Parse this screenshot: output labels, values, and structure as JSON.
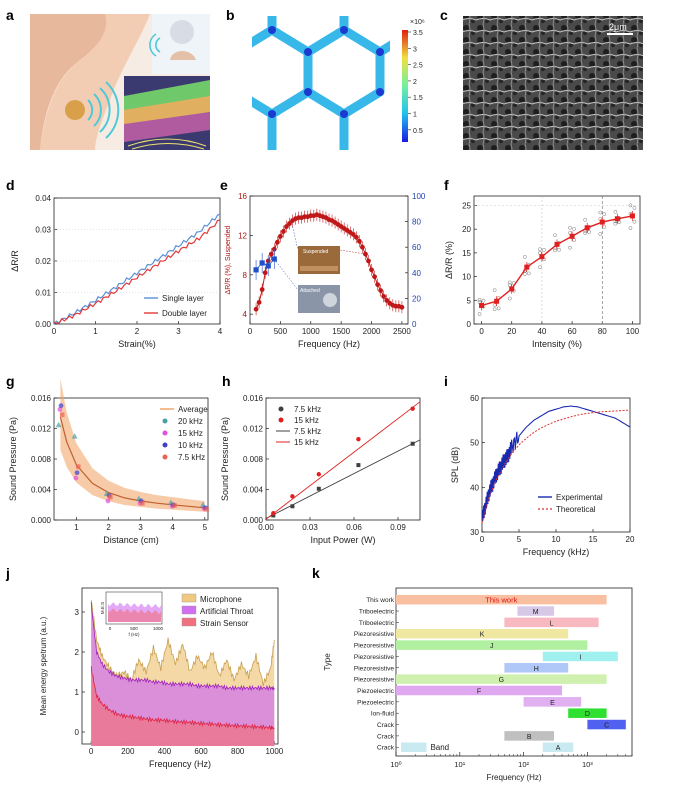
{
  "panel_labels": [
    "a",
    "b",
    "c",
    "d",
    "e",
    "f",
    "g",
    "h",
    "i",
    "j",
    "k"
  ],
  "colors": {
    "blue": "#3a64c8",
    "red": "#e03a3a",
    "darkred": "#c01818",
    "orange": "#f0b070",
    "purple": "#c050e0",
    "pink": "#f07080",
    "navy": "#1a2ab0",
    "gray": "#505050"
  },
  "panel_b": {
    "scale_exponent": "×10⁶",
    "scale_ticks": [
      "3.5",
      "3",
      "2.5",
      "2",
      "1.5",
      "1",
      "0.5"
    ]
  },
  "panel_c": {
    "scale_bar": "2μm"
  },
  "panel_a": {
    "icons": [
      "neck-illustration-icon",
      "sound-wave-icon",
      "layered-sensor-icon"
    ]
  },
  "chart_data": [
    {
      "panel": "d",
      "type": "line",
      "xlabel": "Strain(%)",
      "ylabel": "ΔR/R",
      "xlim": [
        0,
        4
      ],
      "ylim": [
        0,
        0.04
      ],
      "xticks": [
        "0",
        "1",
        "2",
        "3",
        "4"
      ],
      "yticks": [
        "0.00",
        "0.01",
        "0.02",
        "0.03",
        "0.04"
      ],
      "legend": "bottom-right",
      "series": [
        {
          "name": "Single layer",
          "color": "#5b8fd6",
          "x": [
            0,
            0.5,
            1,
            1.5,
            2,
            2.5,
            3,
            3.5,
            4
          ],
          "y": [
            0,
            0.0035,
            0.0075,
            0.0118,
            0.0162,
            0.0205,
            0.0248,
            0.0293,
            0.035
          ]
        },
        {
          "name": "Double layer",
          "color": "#e03a3a",
          "x": [
            0,
            0.5,
            1,
            1.5,
            2,
            2.5,
            3,
            3.5,
            4
          ],
          "y": [
            0,
            0.0028,
            0.0065,
            0.0105,
            0.0148,
            0.019,
            0.0232,
            0.0272,
            0.033
          ]
        }
      ]
    },
    {
      "panel": "e",
      "type": "scatter",
      "xlabel": "Frequency (Hz)",
      "ylabel": "ΔR/R (%), Suspended",
      "ylabel_right": "",
      "xlim": [
        0,
        2600
      ],
      "ylim": [
        3,
        16
      ],
      "ylim_right": [
        0,
        100
      ],
      "xticks": [
        "0",
        "500",
        "1000",
        "1500",
        "2000",
        "2500"
      ],
      "yticks": [
        "4",
        "8",
        "12",
        "16"
      ],
      "yticks_right": [
        "0",
        "20",
        "40",
        "60",
        "80",
        "100"
      ],
      "inset_labels": [
        "Suspended",
        "Attached"
      ],
      "series": [
        {
          "name": "Suspended",
          "color": "#c01818",
          "x": [
            100,
            150,
            200,
            250,
            300,
            350,
            400,
            450,
            500,
            550,
            600,
            650,
            700,
            750,
            800,
            850,
            900,
            950,
            1000,
            1050,
            1100,
            1150,
            1200,
            1250,
            1300,
            1350,
            1400,
            1450,
            1500,
            1550,
            1600,
            1650,
            1700,
            1750,
            1800,
            1850,
            1900,
            1950,
            2000,
            2050,
            2100,
            2150,
            2200,
            2250,
            2300,
            2350,
            2400,
            2450,
            2500
          ],
          "y": [
            4.5,
            5.2,
            6.5,
            8.2,
            9.4,
            10.1,
            10.6,
            11.3,
            11.9,
            12.4,
            12.9,
            13.2,
            13.5,
            13.7,
            13.8,
            13.8,
            13.9,
            13.9,
            14.0,
            14.0,
            14.1,
            14.0,
            13.9,
            13.8,
            13.6,
            13.5,
            13.3,
            13.1,
            12.9,
            12.7,
            12.5,
            12.3,
            12.1,
            11.8,
            11.4,
            10.8,
            10.1,
            9.4,
            8.5,
            7.8,
            7.0,
            6.4,
            5.8,
            5.4,
            5.1,
            4.9,
            4.8,
            4.8,
            4.7
          ]
        },
        {
          "name": "Attached",
          "color": "#2050c8",
          "x": [
            100,
            200,
            300,
            400
          ],
          "y": [
            8.5,
            9.2,
            8.9,
            9.6
          ]
        }
      ]
    },
    {
      "panel": "f",
      "type": "line",
      "xlabel": "Intensity (%)",
      "ylabel": "ΔR/R (%)",
      "xlim": [
        -5,
        105
      ],
      "ylim": [
        0,
        27
      ],
      "xticks": [
        "0",
        "20",
        "40",
        "60",
        "80",
        "100"
      ],
      "yticks": [
        "0",
        "5",
        "10",
        "15",
        "20",
        "25"
      ],
      "series": [
        {
          "name": "",
          "color": "#e02020",
          "x": [
            0,
            10,
            20,
            30,
            40,
            50,
            60,
            70,
            80,
            90,
            100
          ],
          "y": [
            3.9,
            4.8,
            7.4,
            12.0,
            14.2,
            16.8,
            18.5,
            20.3,
            21.5,
            22.2,
            22.8
          ]
        }
      ]
    },
    {
      "panel": "g",
      "type": "scatter",
      "xlabel": "Distance (cm)",
      "ylabel": "Sound Pressure (Pa)",
      "xlim": [
        0.3,
        5.1
      ],
      "ylim": [
        0,
        0.016
      ],
      "xticks": [
        "1",
        "2",
        "3",
        "4",
        "5"
      ],
      "yticks": [
        "0.000",
        "0.004",
        "0.008",
        "0.012",
        "0.016"
      ],
      "legend": "top-right",
      "series": [
        {
          "name": "Average",
          "color": "#c06030",
          "x": [
            0.5,
            0.7,
            1,
            1.5,
            2,
            2.5,
            3,
            3.5,
            4,
            4.5,
            5
          ],
          "y": [
            0.0135,
            0.0102,
            0.0072,
            0.0048,
            0.0036,
            0.0029,
            0.0025,
            0.0022,
            0.002,
            0.0018,
            0.0016
          ]
        },
        {
          "name": "20 kHz",
          "color": "#4aa0a0",
          "x": [
            0.5,
            1,
            2,
            3,
            4,
            5
          ],
          "y": [
            0.0125,
            0.011,
            0.0035,
            0.0028,
            0.0023,
            0.002
          ]
        },
        {
          "name": "15 kHz",
          "color": "#e050e0",
          "x": [
            0.5,
            1,
            2,
            3,
            4,
            5
          ],
          "y": [
            0.0145,
            0.0055,
            0.0025,
            0.0022,
            0.0018,
            0.0015
          ]
        },
        {
          "name": "10 kHz",
          "color": "#4040d0",
          "x": [
            0.5,
            1,
            2,
            3,
            4,
            5
          ],
          "y": [
            0.015,
            0.0062,
            0.0032,
            0.0025,
            0.002,
            0.0016
          ]
        },
        {
          "name": "7.5 kHz",
          "color": "#f06050",
          "x": [
            0.5,
            1,
            2,
            3,
            4,
            5
          ],
          "y": [
            0.0138,
            0.007,
            0.003,
            0.0022,
            0.0019,
            0.0014
          ]
        }
      ]
    },
    {
      "panel": "h",
      "type": "scatter",
      "xlabel": "Input Power (W)",
      "ylabel": "Sound Pressure (Pa)",
      "xlim": [
        0,
        0.105
      ],
      "ylim": [
        0,
        0.016
      ],
      "xticks": [
        "0.00",
        "0.03",
        "0.06",
        "0.09"
      ],
      "yticks": [
        "0.000",
        "0.004",
        "0.008",
        "0.012",
        "0.016"
      ],
      "legend": "top-left",
      "series": [
        {
          "name": "7.5 kHz",
          "color": "#404040",
          "x": [
            0.005,
            0.018,
            0.036,
            0.063,
            0.1
          ],
          "y": [
            0.0006,
            0.0018,
            0.0041,
            0.0072,
            0.01
          ]
        },
        {
          "name": "15 kHz",
          "color": "#e02020",
          "x": [
            0.005,
            0.018,
            0.036,
            0.063,
            0.1
          ],
          "y": [
            0.0009,
            0.0031,
            0.006,
            0.0106,
            0.0146
          ]
        }
      ],
      "fits": [
        {
          "name": "7.5 kHz",
          "color": "#404040",
          "x": [
            0,
            0.105
          ],
          "y": [
            0.0002,
            0.0105
          ]
        },
        {
          "name": "15 kHz",
          "color": "#e02020",
          "x": [
            0,
            0.105
          ],
          "y": [
            0.0001,
            0.0155
          ]
        }
      ]
    },
    {
      "panel": "i",
      "type": "line",
      "xlabel": "Frequency (kHz)",
      "ylabel": "SPL (dB)",
      "xlim": [
        0,
        20
      ],
      "ylim": [
        30,
        60
      ],
      "xticks": [
        "0",
        "5",
        "10",
        "15",
        "20"
      ],
      "yticks": [
        "30",
        "40",
        "50",
        "60"
      ],
      "legend": "bottom-right",
      "series": [
        {
          "name": "Experimental",
          "color": "#1a2ab0",
          "x": [
            0,
            0.5,
            1,
            1.5,
            2,
            2.5,
            3,
            3.5,
            4,
            5,
            6,
            7,
            8,
            9,
            10,
            11,
            12,
            13,
            14,
            15,
            16,
            17,
            18,
            19,
            20
          ],
          "y": [
            33,
            36,
            39,
            41,
            43,
            44.5,
            46,
            47,
            49,
            51.5,
            53.5,
            55,
            56,
            57,
            57.5,
            58,
            58.2,
            58,
            57.5,
            57,
            56.5,
            56,
            55.5,
            54.5,
            53.5
          ]
        },
        {
          "name": "Theoretical",
          "color": "#e03030",
          "x": [
            0,
            1,
            2,
            3,
            4,
            5,
            6,
            7,
            8,
            9,
            10,
            11,
            12,
            13,
            14,
            15,
            16,
            17,
            18,
            19,
            20
          ],
          "y": [
            32,
            38,
            42,
            45,
            47.5,
            49.5,
            51,
            52.3,
            53.3,
            54.1,
            54.8,
            55.3,
            55.8,
            56.2,
            56.5,
            56.7,
            56.9,
            57,
            57.1,
            57.2,
            57.3
          ]
        }
      ]
    },
    {
      "panel": "j",
      "type": "area",
      "xlabel": "Frequency (Hz)",
      "ylabel": "Mean energy spetrum (a.u.)",
      "xlim": [
        -50,
        1020
      ],
      "ylim": [
        -0.3,
        3.6
      ],
      "xticks": [
        "0",
        "200",
        "400",
        "600",
        "800",
        "1000"
      ],
      "yticks": [
        "0",
        "1",
        "2",
        "3"
      ],
      "legend": "top-right",
      "inset_xticks": [
        "0",
        "500",
        "1000"
      ],
      "inset_xlabel": "f (Hz)",
      "inset_ylabel": "M.E.S",
      "series": [
        {
          "name": "Microphone",
          "color": "#f0c880",
          "x": [
            0,
            30,
            60,
            100,
            140,
            180,
            220,
            260,
            300,
            340,
            380,
            420,
            460,
            500,
            540,
            580,
            620,
            660,
            700,
            740,
            780,
            820,
            860,
            900,
            940,
            980,
            1000
          ],
          "y": [
            3.3,
            2.3,
            1.9,
            1.6,
            1.4,
            1.5,
            1.3,
            1.8,
            1.5,
            2.1,
            1.6,
            2.3,
            1.7,
            2.2,
            1.5,
            1.9,
            1.6,
            2.0,
            1.4,
            1.8,
            1.3,
            1.7,
            1.4,
            1.9,
            1.2,
            1.6,
            2.3
          ]
        },
        {
          "name": "Artificial Throat",
          "color": "#d070f0",
          "x": [
            0,
            30,
            60,
            100,
            140,
            180,
            220,
            260,
            300,
            340,
            380,
            420,
            460,
            500,
            540,
            580,
            620,
            660,
            700,
            740,
            780,
            820,
            860,
            900,
            940,
            980,
            1000
          ],
          "y": [
            3.2,
            2.0,
            1.7,
            1.5,
            1.4,
            1.35,
            1.3,
            1.3,
            1.3,
            1.25,
            1.25,
            1.2,
            1.2,
            1.2,
            1.2,
            1.15,
            1.15,
            1.15,
            1.15,
            1.1,
            1.1,
            1.1,
            1.1,
            1.1,
            1.1,
            1.1,
            1.1
          ]
        },
        {
          "name": "Strain Sensor",
          "color": "#f07080",
          "x": [
            0,
            30,
            60,
            100,
            140,
            180,
            220,
            260,
            300,
            340,
            380,
            420,
            460,
            500,
            540,
            580,
            620,
            660,
            700,
            740,
            780,
            820,
            860,
            900,
            940,
            980,
            1000
          ],
          "y": [
            1.6,
            0.9,
            0.7,
            0.55,
            0.45,
            0.4,
            0.38,
            0.35,
            0.33,
            0.3,
            0.3,
            0.28,
            0.26,
            0.25,
            0.24,
            0.22,
            0.21,
            0.2,
            0.18,
            0.17,
            0.16,
            0.15,
            0.14,
            0.13,
            0.12,
            0.11,
            0.1
          ]
        }
      ]
    },
    {
      "panel": "k",
      "type": "bar",
      "xlabel": "Frequency (Hz)",
      "ylabel": "Type",
      "xscale": "log",
      "xlim": [
        1,
        5000
      ],
      "xticks": [
        "10⁰",
        "10¹",
        "10²",
        "10³"
      ],
      "categories": [
        "This work",
        "Triboelectric",
        "Triboelectric",
        "Piezoresistive",
        "Piezoresistive",
        "Piezoresistive",
        "Piezoresistive",
        "Piezoresistive",
        "Piezoelectric",
        "Piezoelectric",
        "Ion-fluid",
        "Crack",
        "Crack",
        "Crack"
      ],
      "bar_labels": [
        "This work",
        "M",
        "L",
        "K",
        "J",
        "I",
        "H",
        "G",
        "F",
        "E",
        "D",
        "C",
        "B",
        "A"
      ],
      "legend_label": "Band",
      "bars": [
        {
          "start": 1,
          "end": 2000,
          "color": "#f8c0a0"
        },
        {
          "start": 80,
          "end": 300,
          "color": "#d8c8e8"
        },
        {
          "start": 50,
          "end": 1500,
          "color": "#f8b8c0"
        },
        {
          "start": 1,
          "end": 500,
          "color": "#f0e8a0"
        },
        {
          "start": 1,
          "end": 1000,
          "color": "#b0f0a0"
        },
        {
          "start": 200,
          "end": 3000,
          "color": "#a0f0f0"
        },
        {
          "start": 50,
          "end": 500,
          "color": "#b0c8f8"
        },
        {
          "start": 1,
          "end": 2000,
          "color": "#d0f0b0"
        },
        {
          "start": 1,
          "end": 400,
          "color": "#e0a8f0"
        },
        {
          "start": 100,
          "end": 800,
          "color": "#e0b0f0"
        },
        {
          "start": 500,
          "end": 2000,
          "color": "#30e030"
        },
        {
          "start": 1000,
          "end": 4000,
          "color": "#5060f0"
        },
        {
          "start": 50,
          "end": 300,
          "color": "#c0c0c0"
        },
        {
          "start": 200,
          "end": 600,
          "color": "#c8eaf0"
        }
      ],
      "legend_bar": {
        "start": 1.2,
        "end": 3,
        "color": "#c8eaf0"
      }
    }
  ]
}
